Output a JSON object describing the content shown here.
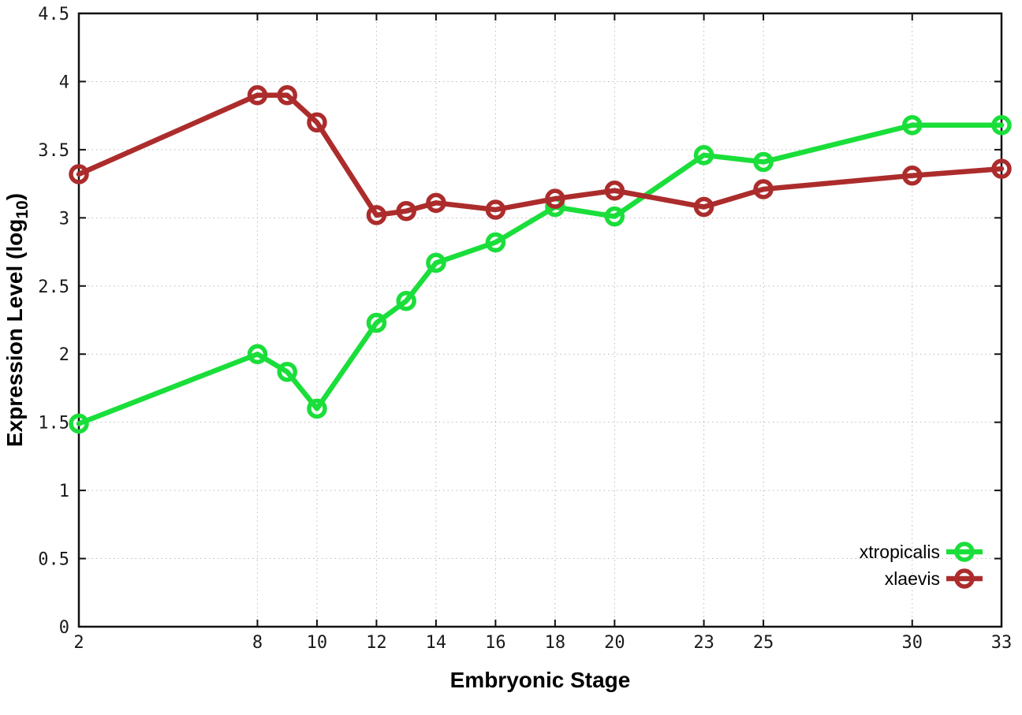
{
  "chart_data": {
    "type": "line",
    "title": "",
    "xlabel": "Embryonic Stage",
    "ylabel": "Expression Level (log10)",
    "ylabel_parts": {
      "pre": "Expression Level (log",
      "sub": "10",
      "post": ")"
    },
    "xlim": [
      2,
      33
    ],
    "ylim": [
      0,
      4.5
    ],
    "grid": true,
    "grid_style": "dotted",
    "grid_color": "#b9b9b9",
    "background_color": "#ffffff",
    "border_color": "#111111",
    "legend_position": "bottom-right-inside",
    "marker_style": "open-circle",
    "x_ticks": [
      2,
      8,
      10,
      12,
      14,
      16,
      18,
      20,
      23,
      25,
      30,
      33
    ],
    "x_tick_labels": [
      "2",
      "8",
      "10",
      "12",
      "14",
      "16",
      "18",
      "20",
      "23",
      "25",
      "30",
      "33"
    ],
    "y_ticks": [
      0,
      0.5,
      1,
      1.5,
      2,
      2.5,
      3,
      3.5,
      4,
      4.5
    ],
    "y_tick_labels": [
      "0",
      "0.5",
      "1",
      "1.5",
      "2",
      "2.5",
      "3",
      "3.5",
      "4",
      "4.5"
    ],
    "x": [
      2,
      8,
      9,
      10,
      12,
      13,
      14,
      16,
      18,
      20,
      23,
      25,
      30,
      33
    ],
    "series": [
      {
        "name": "xtropicalis",
        "color": "#1ade3a",
        "values": [
          1.49,
          2.0,
          1.87,
          1.6,
          2.23,
          2.39,
          2.67,
          2.82,
          3.08,
          3.01,
          3.46,
          3.41,
          3.68,
          3.68
        ]
      },
      {
        "name": "xlaevis",
        "color": "#ac2c2c",
        "values": [
          3.32,
          3.9,
          3.9,
          3.7,
          3.02,
          3.05,
          3.11,
          3.06,
          3.14,
          3.2,
          3.08,
          3.21,
          3.31,
          3.36
        ]
      }
    ]
  }
}
